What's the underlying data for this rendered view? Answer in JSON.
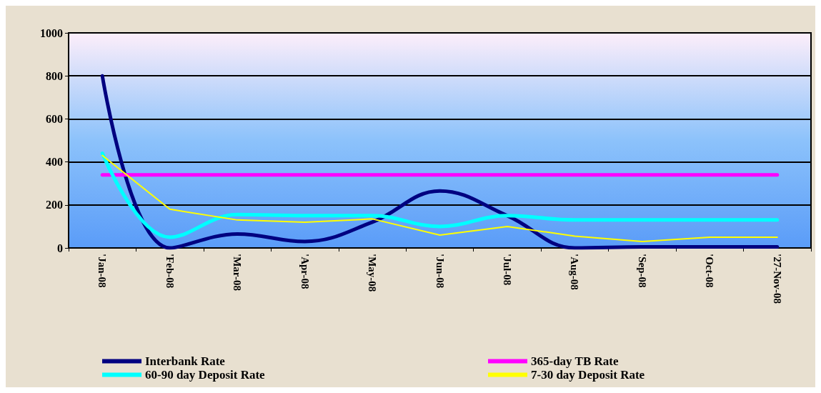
{
  "chart_data": {
    "type": "line",
    "categories": [
      "'Jan-08",
      "'Feb-08",
      "'Mar-08",
      "'Apr-08",
      "'May-08",
      "'Jun-08",
      "'Jul-08",
      "'Aug-08",
      "'Sep-08",
      "'Oct-08",
      "'27-Nov-08"
    ],
    "series": [
      {
        "name": "Interbank Rate",
        "color": "#000080",
        "values": [
          800,
          0,
          65,
          30,
          120,
          265,
          150,
          0,
          5,
          5,
          5
        ]
      },
      {
        "name": "365-day TB Rate",
        "color": "#ff00ff",
        "values": [
          340,
          340,
          340,
          340,
          340,
          340,
          340,
          340,
          340,
          340,
          340
        ]
      },
      {
        "name": "60-90 day Deposit Rate",
        "color": "#00ffff",
        "values": [
          440,
          50,
          155,
          150,
          150,
          100,
          150,
          130,
          130,
          130,
          130
        ]
      },
      {
        "name": "7-30 day Deposit Rate",
        "color": "#ffff00",
        "values": [
          430,
          180,
          130,
          120,
          135,
          60,
          100,
          55,
          30,
          50,
          50
        ]
      }
    ],
    "ylim": [
      0,
      1000
    ],
    "yticks": [
      0,
      200,
      400,
      600,
      800,
      1000
    ],
    "grid": "y",
    "legend": "bottom",
    "marker": "none",
    "line_style": "solid"
  }
}
